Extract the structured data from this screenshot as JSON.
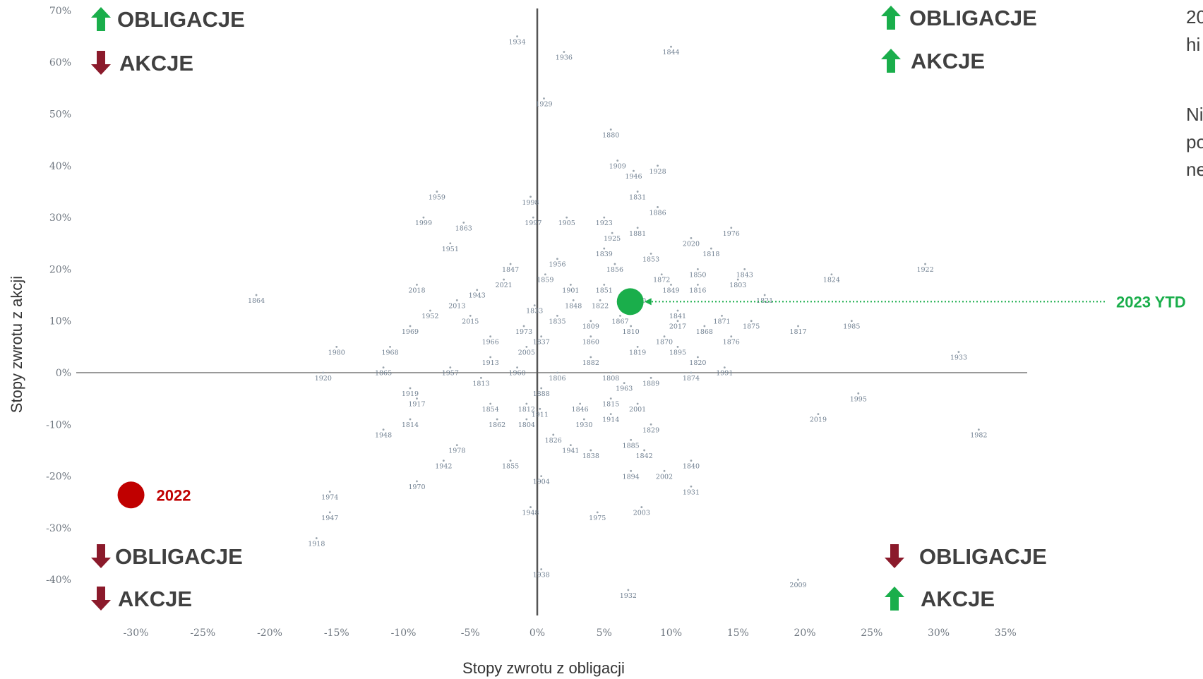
{
  "chart_data": {
    "type": "scatter",
    "title": "",
    "xlabel": "Stopy zwrotu z obligacji",
    "ylabel": "Stopy zwrotu z akcji",
    "xlim": [
      -33,
      36
    ],
    "ylim": [
      -47,
      71
    ],
    "grid": false,
    "x_ticks": [
      -30,
      -25,
      -20,
      -15,
      -10,
      -5,
      0,
      5,
      10,
      15,
      20,
      25,
      30,
      35
    ],
    "y_ticks": [
      70,
      60,
      50,
      40,
      30,
      20,
      10,
      0,
      -10,
      -20,
      -30,
      -40
    ],
    "x_tick_labels": [
      "-30%",
      "-25%",
      "-20%",
      "-15%",
      "-10%",
      "-5%",
      "0%",
      "5%",
      "10%",
      "15%",
      "20%",
      "25%",
      "30%",
      "35%"
    ],
    "y_tick_labels": [
      "70%",
      "60%",
      "50%",
      "40%",
      "30%",
      "20%",
      "10%",
      "0%",
      "-10%",
      "-20%",
      "-30%",
      "-40%"
    ],
    "points": [
      {
        "label": "1934",
        "x": -1.5,
        "y": 65
      },
      {
        "label": "1936",
        "x": 2.0,
        "y": 62
      },
      {
        "label": "1844",
        "x": 10.0,
        "y": 63
      },
      {
        "label": "1929",
        "x": 0.5,
        "y": 53
      },
      {
        "label": "1880",
        "x": 5.5,
        "y": 47
      },
      {
        "label": "1909",
        "x": 6.0,
        "y": 41
      },
      {
        "label": "1946",
        "x": 7.2,
        "y": 39
      },
      {
        "label": "1928",
        "x": 9.0,
        "y": 40
      },
      {
        "label": "1831",
        "x": 7.5,
        "y": 35
      },
      {
        "label": "1886",
        "x": 9.0,
        "y": 32
      },
      {
        "label": "1959",
        "x": -7.5,
        "y": 35
      },
      {
        "label": "1999",
        "x": -8.5,
        "y": 30
      },
      {
        "label": "1863",
        "x": -5.5,
        "y": 29
      },
      {
        "label": "1951",
        "x": -6.5,
        "y": 25
      },
      {
        "label": "1998",
        "x": -0.5,
        "y": 34
      },
      {
        "label": "1997",
        "x": -0.3,
        "y": 30
      },
      {
        "label": "1905",
        "x": 2.2,
        "y": 30
      },
      {
        "label": "1923",
        "x": 5.0,
        "y": 30
      },
      {
        "label": "1925",
        "x": 5.6,
        "y": 27
      },
      {
        "label": "1881",
        "x": 7.5,
        "y": 28
      },
      {
        "label": "2020",
        "x": 11.5,
        "y": 26
      },
      {
        "label": "1976",
        "x": 14.5,
        "y": 28
      },
      {
        "label": "1818",
        "x": 13.0,
        "y": 24
      },
      {
        "label": "1839",
        "x": 5.0,
        "y": 24
      },
      {
        "label": "1853",
        "x": 8.5,
        "y": 23
      },
      {
        "label": "1847",
        "x": -2.0,
        "y": 21
      },
      {
        "label": "1956",
        "x": 1.5,
        "y": 22
      },
      {
        "label": "1856",
        "x": 5.8,
        "y": 21
      },
      {
        "label": "1859",
        "x": 0.6,
        "y": 19
      },
      {
        "label": "1872",
        "x": 9.3,
        "y": 19
      },
      {
        "label": "1850",
        "x": 12.0,
        "y": 20
      },
      {
        "label": "1843",
        "x": 15.5,
        "y": 20
      },
      {
        "label": "1803",
        "x": 15.0,
        "y": 18
      },
      {
        "label": "1824",
        "x": 22.0,
        "y": 19
      },
      {
        "label": "1922",
        "x": 29.0,
        "y": 21
      },
      {
        "label": "2018",
        "x": -9.0,
        "y": 17
      },
      {
        "label": "2021",
        "x": -2.5,
        "y": 18
      },
      {
        "label": "1943",
        "x": -4.5,
        "y": 16
      },
      {
        "label": "1864",
        "x": -21.0,
        "y": 15
      },
      {
        "label": "1901",
        "x": 2.5,
        "y": 17
      },
      {
        "label": "1851",
        "x": 5.0,
        "y": 17
      },
      {
        "label": "1849",
        "x": 10.0,
        "y": 17
      },
      {
        "label": "1816",
        "x": 12.0,
        "y": 17
      },
      {
        "label": "1821",
        "x": 17.0,
        "y": 15
      },
      {
        "label": "2013",
        "x": -6.0,
        "y": 14
      },
      {
        "label": "1848",
        "x": 2.7,
        "y": 14
      },
      {
        "label": "1822",
        "x": 4.7,
        "y": 14
      },
      {
        "label": "1870",
        "x": 7.5,
        "y": 15
      },
      {
        "label": "1952",
        "x": -8.0,
        "y": 12
      },
      {
        "label": "1833",
        "x": -0.2,
        "y": 13
      },
      {
        "label": "1841",
        "x": 10.5,
        "y": 12
      },
      {
        "label": "1867",
        "x": 6.2,
        "y": 11
      },
      {
        "label": "1871",
        "x": 13.8,
        "y": 11
      },
      {
        "label": "1875",
        "x": 16.0,
        "y": 10
      },
      {
        "label": "1817",
        "x": 19.5,
        "y": 9
      },
      {
        "label": "1985",
        "x": 23.5,
        "y": 10
      },
      {
        "label": "2015",
        "x": -5.0,
        "y": 11
      },
      {
        "label": "1835",
        "x": 1.5,
        "y": 11
      },
      {
        "label": "1809",
        "x": 4.0,
        "y": 10
      },
      {
        "label": "2017",
        "x": 10.5,
        "y": 10
      },
      {
        "label": "1969",
        "x": -9.5,
        "y": 9
      },
      {
        "label": "1973",
        "x": -1.0,
        "y": 9
      },
      {
        "label": "1810",
        "x": 7.0,
        "y": 9
      },
      {
        "label": "1868",
        "x": 12.5,
        "y": 9
      },
      {
        "label": "1966",
        "x": -3.5,
        "y": 7
      },
      {
        "label": "1837",
        "x": 0.3,
        "y": 7
      },
      {
        "label": "1860",
        "x": 4.0,
        "y": 7
      },
      {
        "label": "1870",
        "x": 9.5,
        "y": 7
      },
      {
        "label": "1876",
        "x": 14.5,
        "y": 7
      },
      {
        "label": "1980",
        "x": -15.0,
        "y": 5
      },
      {
        "label": "1968",
        "x": -11.0,
        "y": 5
      },
      {
        "label": "2005",
        "x": -0.8,
        "y": 5
      },
      {
        "label": "1819",
        "x": 7.5,
        "y": 5
      },
      {
        "label": "1895",
        "x": 10.5,
        "y": 5
      },
      {
        "label": "1913",
        "x": -3.5,
        "y": 3
      },
      {
        "label": "1882",
        "x": 4.0,
        "y": 3
      },
      {
        "label": "1820",
        "x": 12.0,
        "y": 3
      },
      {
        "label": "1933",
        "x": 31.5,
        "y": 4
      },
      {
        "label": "1920",
        "x": -16.0,
        "y": 0
      },
      {
        "label": "1865",
        "x": -11.5,
        "y": 1
      },
      {
        "label": "1957",
        "x": -6.5,
        "y": 1
      },
      {
        "label": "1960",
        "x": -1.5,
        "y": 1
      },
      {
        "label": "1806",
        "x": 1.5,
        "y": 0
      },
      {
        "label": "1808",
        "x": 5.5,
        "y": 0
      },
      {
        "label": "1874",
        "x": 11.5,
        "y": 0
      },
      {
        "label": "1991",
        "x": 14.0,
        "y": 1
      },
      {
        "label": "1813",
        "x": -4.2,
        "y": -1
      },
      {
        "label": "1889",
        "x": 8.5,
        "y": -1
      },
      {
        "label": "1963",
        "x": 6.5,
        "y": -2
      },
      {
        "label": "1888",
        "x": 0.3,
        "y": -3
      },
      {
        "label": "1919",
        "x": -9.5,
        "y": -3
      },
      {
        "label": "1995",
        "x": 24.0,
        "y": -4
      },
      {
        "label": "1917",
        "x": -9.0,
        "y": -5
      },
      {
        "label": "1854",
        "x": -3.5,
        "y": -6
      },
      {
        "label": "1812",
        "x": -0.8,
        "y": -6
      },
      {
        "label": "1846",
        "x": 3.2,
        "y": -6
      },
      {
        "label": "1815",
        "x": 5.5,
        "y": -5
      },
      {
        "label": "2001",
        "x": 7.5,
        "y": -6
      },
      {
        "label": "1911",
        "x": 0.2,
        "y": -7
      },
      {
        "label": "1814",
        "x": -9.5,
        "y": -9
      },
      {
        "label": "1862",
        "x": -3.0,
        "y": -9
      },
      {
        "label": "1804",
        "x": -0.8,
        "y": -9
      },
      {
        "label": "1930",
        "x": 3.5,
        "y": -9
      },
      {
        "label": "1914",
        "x": 5.5,
        "y": -8
      },
      {
        "label": "1829",
        "x": 8.5,
        "y": -10
      },
      {
        "label": "2019",
        "x": 21.0,
        "y": -8
      },
      {
        "label": "1948",
        "x": -11.5,
        "y": -11
      },
      {
        "label": "1826",
        "x": 1.2,
        "y": -12
      },
      {
        "label": "1885",
        "x": 7.0,
        "y": -13
      },
      {
        "label": "1982",
        "x": 33.0,
        "y": -11
      },
      {
        "label": "1978",
        "x": -6.0,
        "y": -14
      },
      {
        "label": "1941",
        "x": 2.5,
        "y": -14
      },
      {
        "label": "1838",
        "x": 4.0,
        "y": -15
      },
      {
        "label": "1842",
        "x": 8.0,
        "y": -15
      },
      {
        "label": "1942",
        "x": -7.0,
        "y": -17
      },
      {
        "label": "1855",
        "x": -2.0,
        "y": -17
      },
      {
        "label": "1840",
        "x": 11.5,
        "y": -17
      },
      {
        "label": "1894",
        "x": 7.0,
        "y": -19
      },
      {
        "label": "2002",
        "x": 9.5,
        "y": -19
      },
      {
        "label": "1904",
        "x": 0.3,
        "y": -20
      },
      {
        "label": "1970",
        "x": -9.0,
        "y": -21
      },
      {
        "label": "1931",
        "x": 11.5,
        "y": -22
      },
      {
        "label": "1974",
        "x": -15.5,
        "y": -23
      },
      {
        "label": "1948",
        "x": -0.5,
        "y": -26
      },
      {
        "label": "1975",
        "x": 4.5,
        "y": -27
      },
      {
        "label": "2003",
        "x": 7.8,
        "y": -26
      },
      {
        "label": "1947",
        "x": -15.5,
        "y": -27
      },
      {
        "label": "1918",
        "x": -16.5,
        "y": -32
      },
      {
        "label": "1938",
        "x": 0.3,
        "y": -38
      },
      {
        "label": "2009",
        "x": 19.5,
        "y": -40
      },
      {
        "label": "1932",
        "x": 6.8,
        "y": -42
      }
    ],
    "highlights": [
      {
        "label": "2023 YTD",
        "x": 6.0,
        "y": 14,
        "color": "#1aae4b"
      },
      {
        "label": "2022",
        "x": -31.0,
        "y": -25,
        "color": "#c00000"
      }
    ]
  },
  "quadrants": {
    "top_left": [
      {
        "text": "OBLIGACJE",
        "arrow": "up"
      },
      {
        "text": "AKCJE",
        "arrow": "down"
      }
    ],
    "top_right": [
      {
        "text": "OBLIGACJE",
        "arrow": "up"
      },
      {
        "text": "AKCJE",
        "arrow": "up"
      }
    ],
    "bottom_left": [
      {
        "text": "OBLIGACJE",
        "arrow": "down"
      },
      {
        "text": "AKCJE",
        "arrow": "down"
      }
    ],
    "bottom_right": [
      {
        "text": "OBLIGACJE",
        "arrow": "down"
      },
      {
        "text": "AKCJE",
        "arrow": "up"
      }
    ]
  },
  "side_text": {
    "line1": "20",
    "line2": "hi",
    "line3": "Ni",
    "line4": "po",
    "line5": "ne"
  },
  "colors": {
    "up_arrow": "#1aae4b",
    "down_arrow": "#8b1a2b",
    "axis": "#555555"
  }
}
